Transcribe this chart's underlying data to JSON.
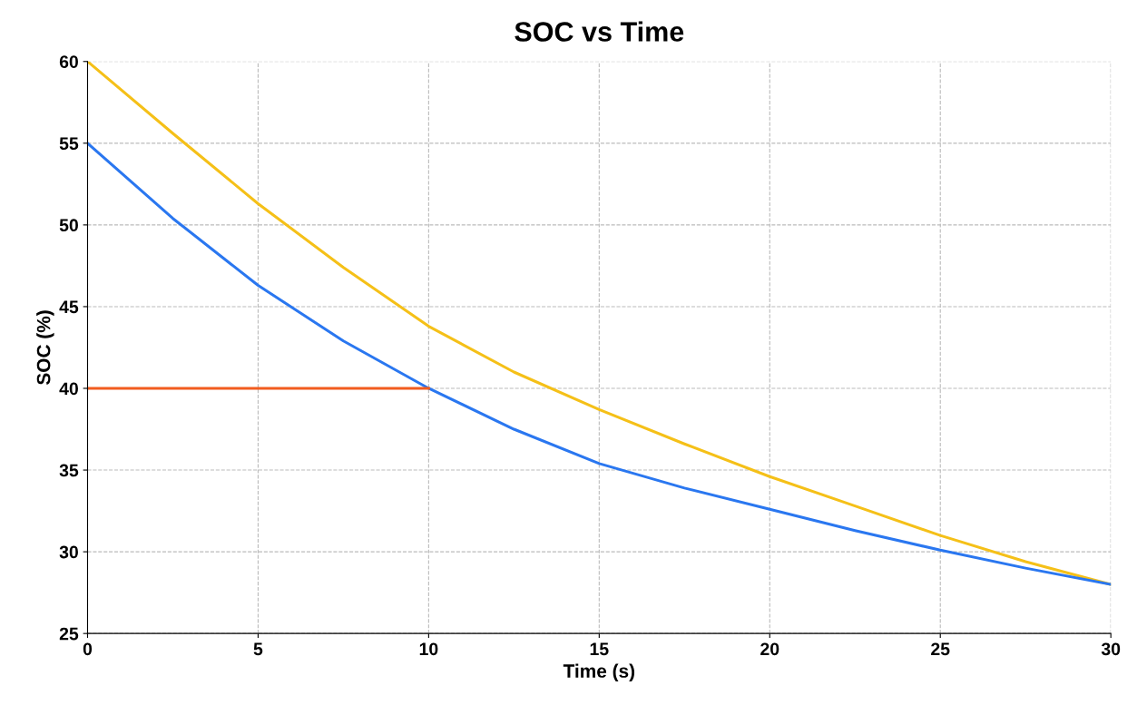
{
  "chart_data": {
    "type": "line",
    "title": "SOC vs Time",
    "xlabel": "Time (s)",
    "ylabel": "SOC (%)",
    "xlim": [
      0,
      30
    ],
    "ylim": [
      25,
      60
    ],
    "xticks": [
      0,
      5,
      10,
      15,
      20,
      25,
      30
    ],
    "yticks": [
      25,
      30,
      35,
      40,
      45,
      50,
      55,
      60
    ],
    "grid": true,
    "line_style": "solid",
    "marker": "none",
    "series": [
      {
        "color": "#f5c018",
        "x": [
          0,
          2.5,
          5,
          7.5,
          10,
          12.5,
          15,
          17.5,
          20,
          22.5,
          25,
          27.5,
          30
        ],
        "values": [
          60,
          55.6,
          51.3,
          47.4,
          43.8,
          41.0,
          38.7,
          36.6,
          34.6,
          32.8,
          31.0,
          29.4,
          28
        ]
      },
      {
        "color": "#2a77f0",
        "x": [
          0,
          2.5,
          5,
          7.5,
          10,
          12.5,
          15,
          17.5,
          20,
          22.5,
          25,
          27.5,
          30
        ],
        "values": [
          55,
          50.4,
          46.3,
          42.9,
          40,
          37.5,
          35.4,
          33.9,
          32.6,
          31.3,
          30.1,
          29.0,
          28
        ]
      },
      {
        "color": "#f25c1e",
        "x": [
          0,
          10
        ],
        "values": [
          40,
          40
        ]
      }
    ]
  }
}
